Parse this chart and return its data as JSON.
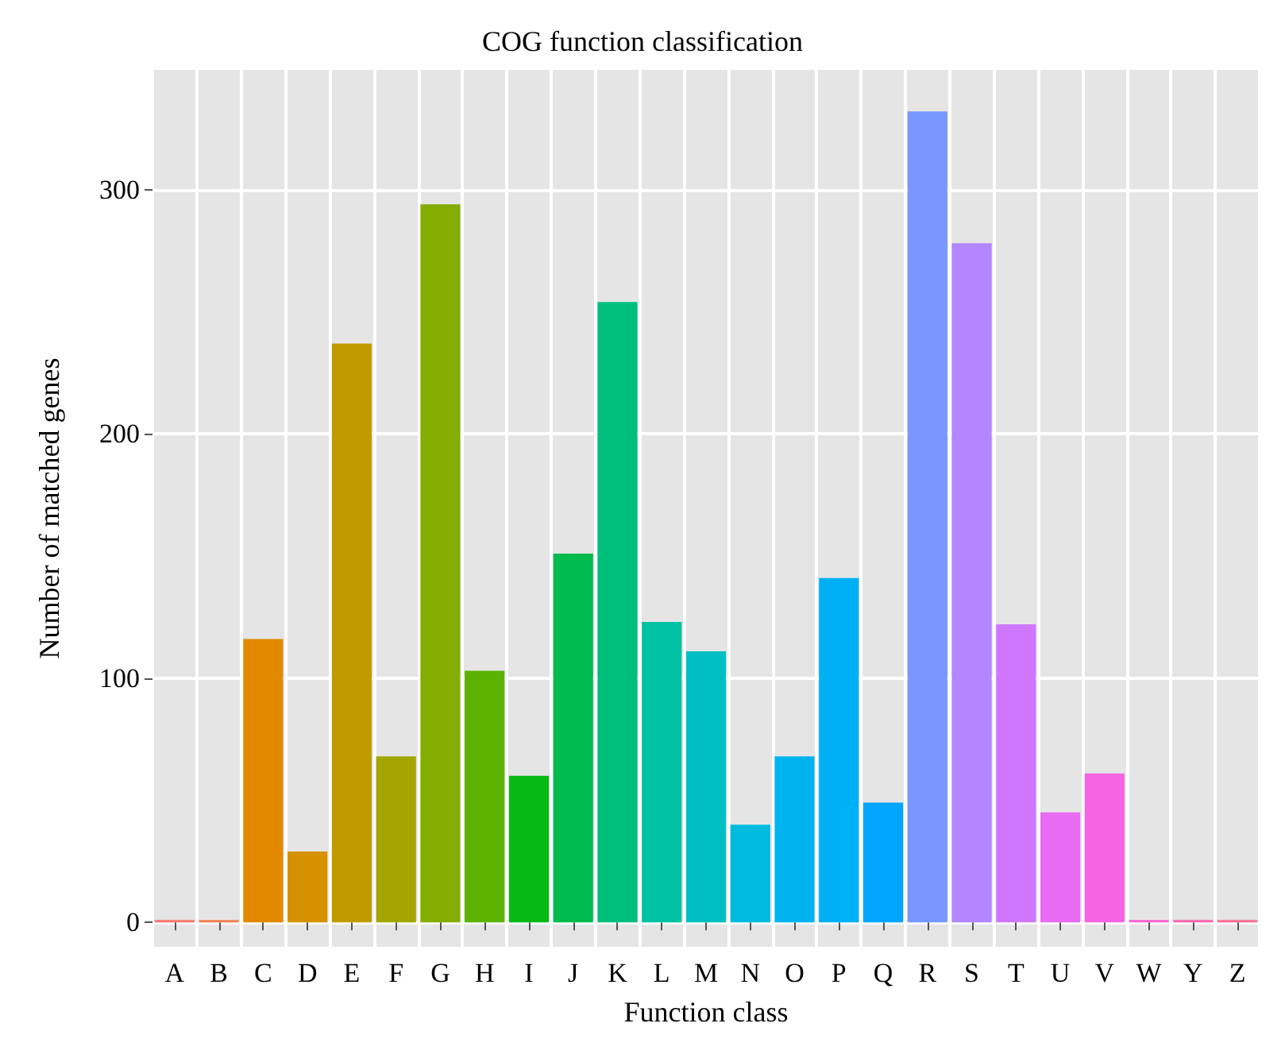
{
  "chart_data": {
    "type": "bar",
    "title": "COG function classification",
    "xlabel": "Function class",
    "ylabel": "Number of matched genes",
    "categories": [
      "A",
      "B",
      "C",
      "D",
      "E",
      "F",
      "G",
      "H",
      "I",
      "J",
      "K",
      "L",
      "M",
      "N",
      "O",
      "P",
      "Q",
      "R",
      "S",
      "T",
      "U",
      "V",
      "W",
      "Y",
      "Z"
    ],
    "values": [
      1,
      1,
      116,
      29,
      237,
      68,
      294,
      103,
      60,
      151,
      254,
      123,
      111,
      40,
      68,
      141,
      49,
      332,
      278,
      122,
      45,
      61,
      1,
      1,
      1
    ],
    "colors": [
      "#F8766D",
      "#F07F4F",
      "#E38900",
      "#D69100",
      "#C09B00",
      "#A3A500",
      "#85AD00",
      "#5BB300",
      "#06B913",
      "#00BB4E",
      "#00BF7D",
      "#00C1A3",
      "#00BFC4",
      "#00BAE0",
      "#00B4EF",
      "#00B0F6",
      "#00A5FF",
      "#7997FF",
      "#B385FF",
      "#CF78FF",
      "#E76BF3",
      "#F564E3",
      "#FD61D1",
      "#FF64B0",
      "#FF6C91"
    ],
    "ylim": [
      -10,
      349
    ],
    "yticks": [
      0,
      100,
      200,
      300
    ],
    "grid": true
  }
}
